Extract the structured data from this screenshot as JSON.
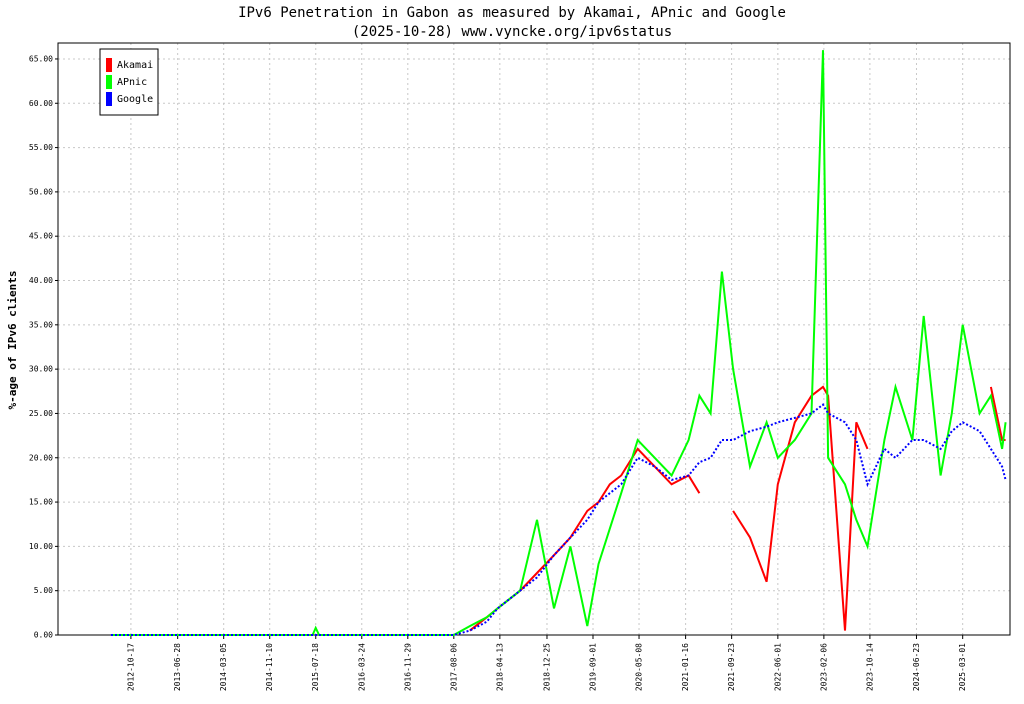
{
  "chart_data": {
    "type": "line",
    "title": "IPv6 Penetration in Gabon as measured by Akamai, APnic and Google",
    "subtitle": "(2025-10-28) www.vyncke.org/ipv6status",
    "y_label": "%-age of IPv6 clients",
    "legend": "top-left",
    "grid": true,
    "x": [
      "2012-07-01",
      "2014-01-01",
      "2015-07-01",
      "2015-07-18",
      "2015-08-05",
      "2016-07-01",
      "2017-08-06",
      "2017-11-01",
      "2018-02-01",
      "2018-04-01",
      "2018-08-01",
      "2018-11-01",
      "2019-02-01",
      "2019-05-01",
      "2019-08-01",
      "2019-10-01",
      "2019-12-01",
      "2020-02-01",
      "2020-05-01",
      "2020-08-01",
      "2020-11-01",
      "2021-02-01",
      "2021-04-01",
      "2021-06-01",
      "2021-08-01",
      "2021-10-01",
      "2022-01-01",
      "2022-04-01",
      "2022-06-01",
      "2022-09-01",
      "2022-12-01",
      "2023-02-01",
      "2023-03-01",
      "2023-06-01",
      "2023-08-01",
      "2023-10-01",
      "2024-01-01",
      "2024-03-01",
      "2024-06-01",
      "2024-08-01",
      "2024-11-01",
      "2025-01-01",
      "2025-03-01",
      "2025-06-01",
      "2025-08-01",
      "2025-10-01",
      "2025-10-20"
    ],
    "xlim": [
      "2011-09-17",
      "2025-11-13"
    ],
    "xticks": [
      "2012-10-17",
      "2013-06-28",
      "2014-03-05",
      "2014-11-10",
      "2015-07-18",
      "2016-03-24",
      "2016-11-29",
      "2017-08-06",
      "2018-04-13",
      "2018-12-25",
      "2019-09-01",
      "2020-05-08",
      "2021-01-16",
      "2021-09-23",
      "2022-06-01",
      "2023-02-06",
      "2023-10-14",
      "2024-06-23",
      "2025-03-01"
    ],
    "ylim": [
      0,
      66.8
    ],
    "yticks": [
      {
        "value": 0,
        "label": "0.00"
      },
      {
        "value": 5,
        "label": "5.00"
      },
      {
        "value": 10,
        "label": "10.00"
      },
      {
        "value": 15,
        "label": "15.00"
      },
      {
        "value": 20,
        "label": "20.00"
      },
      {
        "value": 25,
        "label": "25.00"
      },
      {
        "value": 30,
        "label": "30.00"
      },
      {
        "value": 35,
        "label": "35.00"
      },
      {
        "value": 40,
        "label": "40.00"
      },
      {
        "value": 45,
        "label": "45.00"
      },
      {
        "value": 50,
        "label": "50.00"
      },
      {
        "value": 55,
        "label": "55.00"
      },
      {
        "value": 60,
        "label": "60.00"
      },
      {
        "value": 65,
        "label": "65.00"
      }
    ],
    "series": [
      {
        "name": "Akamai",
        "color": "#ff0000",
        "values": [
          null,
          null,
          null,
          null,
          null,
          null,
          null,
          0.5,
          2,
          3,
          5,
          7,
          9,
          11,
          14,
          15,
          17,
          18,
          21,
          19,
          17,
          18,
          16,
          null,
          null,
          14,
          11,
          6,
          17,
          24,
          27,
          28,
          27,
          0.5,
          24,
          21,
          null,
          null,
          null,
          null,
          null,
          null,
          null,
          null,
          28,
          22,
          22
        ]
      },
      {
        "name": "APnic",
        "color": "#00ff00",
        "values": [
          0,
          0,
          0,
          0.8,
          0,
          0,
          0,
          1,
          2,
          3,
          5,
          13,
          3,
          10,
          1,
          8,
          12,
          16,
          22,
          20,
          18,
          22,
          27,
          25,
          41,
          30,
          19,
          24,
          20,
          22,
          25,
          66,
          20,
          17,
          13,
          10,
          22,
          28,
          22,
          36,
          18,
          25,
          35,
          25,
          27,
          21,
          24
        ]
      },
      {
        "name": "Google",
        "color": "#0000ff",
        "values": [
          0,
          0,
          0,
          0,
          0,
          0,
          0,
          0.5,
          1.5,
          3,
          5,
          6.5,
          9,
          11,
          13,
          15,
          16,
          17,
          20,
          19,
          17.5,
          18,
          19.5,
          20,
          22,
          22,
          23,
          23.5,
          24,
          24.5,
          25,
          26,
          25,
          24,
          22,
          17,
          21,
          20,
          22,
          22,
          21,
          23,
          24,
          23,
          21,
          19,
          17.5
        ]
      }
    ]
  }
}
